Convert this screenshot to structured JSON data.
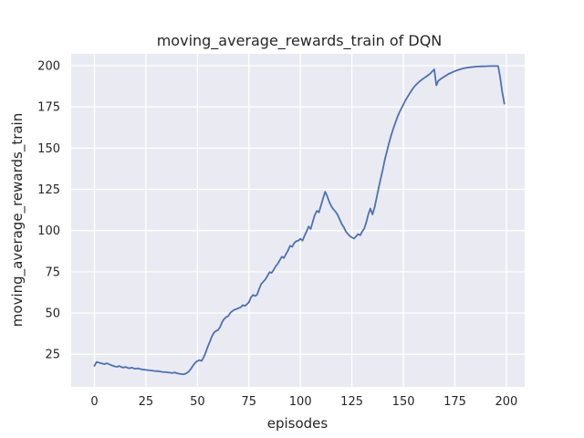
{
  "chart_data": {
    "type": "line",
    "title": "moving_average_rewards_train of DQN",
    "xlabel": "episodes",
    "ylabel": "moving_average_rewards_train",
    "xlim": [
      -11.3,
      208.9
    ],
    "ylim": [
      5.2,
      207.2
    ],
    "xticks": [
      0,
      25,
      50,
      75,
      100,
      125,
      150,
      175,
      200
    ],
    "yticks": [
      25,
      50,
      75,
      100,
      125,
      150,
      175,
      200
    ],
    "grid": true,
    "legend_position": "none",
    "style": {
      "figure_bg": "#FFFFFF",
      "plot_bg": "#EAEAF2",
      "grid_color": "#FFFFFF",
      "line_color": "#4C72B0",
      "text_color": "#262626"
    },
    "series": [
      {
        "name": "moving_average_rewards_train",
        "points": [
          [
            0,
            18.0
          ],
          [
            1,
            20.3
          ],
          [
            2,
            20.0
          ],
          [
            3,
            19.6
          ],
          [
            4,
            19.3
          ],
          [
            5,
            19.0
          ],
          [
            6,
            19.6
          ],
          [
            7,
            19.0
          ],
          [
            8,
            18.4
          ],
          [
            10,
            17.6
          ],
          [
            11,
            17.4
          ],
          [
            12,
            17.9
          ],
          [
            13,
            17.3
          ],
          [
            14,
            16.9
          ],
          [
            15,
            17.3
          ],
          [
            16,
            16.8
          ],
          [
            17,
            16.5
          ],
          [
            18,
            16.9
          ],
          [
            19,
            16.5
          ],
          [
            20,
            16.2
          ],
          [
            21,
            16.5
          ],
          [
            22,
            16.1
          ],
          [
            23,
            15.8
          ],
          [
            25,
            15.5
          ],
          [
            27,
            15.2
          ],
          [
            29,
            14.9
          ],
          [
            31,
            14.7
          ],
          [
            33,
            14.3
          ],
          [
            35,
            14.1
          ],
          [
            37,
            13.8
          ],
          [
            38,
            13.6
          ],
          [
            39,
            14.0
          ],
          [
            40,
            13.5
          ],
          [
            41,
            13.2
          ],
          [
            43,
            12.8
          ],
          [
            44,
            13.1
          ],
          [
            45,
            13.7
          ],
          [
            46,
            14.8
          ],
          [
            47,
            16.5
          ],
          [
            48,
            18.3
          ],
          [
            49,
            20.0
          ],
          [
            50,
            20.9
          ],
          [
            51,
            21.4
          ],
          [
            52,
            21.0
          ],
          [
            53,
            23.0
          ],
          [
            54,
            26.0
          ],
          [
            55,
            29.5
          ],
          [
            56,
            32.5
          ],
          [
            57,
            35.8
          ],
          [
            58,
            38.0
          ],
          [
            59,
            39.2
          ],
          [
            60,
            39.6
          ],
          [
            61,
            41.5
          ],
          [
            62,
            44.5
          ],
          [
            63,
            46.5
          ],
          [
            64,
            47.6
          ],
          [
            65,
            48.2
          ],
          [
            66,
            50.2
          ],
          [
            67,
            51.2
          ],
          [
            68,
            52.0
          ],
          [
            69,
            52.4
          ],
          [
            70,
            53.0
          ],
          [
            71,
            53.5
          ],
          [
            72,
            54.8
          ],
          [
            73,
            54.3
          ],
          [
            74,
            55.3
          ],
          [
            75,
            56.6
          ],
          [
            76,
            59.5
          ],
          [
            77,
            61.0
          ],
          [
            78,
            60.3
          ],
          [
            79,
            61.2
          ],
          [
            80,
            64.8
          ],
          [
            81,
            67.6
          ],
          [
            82,
            69.0
          ],
          [
            83,
            70.4
          ],
          [
            84,
            72.5
          ],
          [
            85,
            74.8
          ],
          [
            86,
            74.3
          ],
          [
            87,
            76.2
          ],
          [
            88,
            78.3
          ],
          [
            89,
            79.9
          ],
          [
            90,
            82.0
          ],
          [
            91,
            84.2
          ],
          [
            92,
            83.4
          ],
          [
            93,
            85.8
          ],
          [
            94,
            88.0
          ],
          [
            95,
            90.8
          ],
          [
            96,
            90.2
          ],
          [
            97,
            92.5
          ],
          [
            98,
            93.6
          ],
          [
            99,
            93.9
          ],
          [
            100,
            95.0
          ],
          [
            101,
            93.9
          ],
          [
            102,
            96.8
          ],
          [
            103,
            99.5
          ],
          [
            104,
            102.5
          ],
          [
            105,
            101.0
          ],
          [
            106,
            105.5
          ],
          [
            107,
            109.5
          ],
          [
            108,
            112.0
          ],
          [
            109,
            111.0
          ],
          [
            110,
            115.3
          ],
          [
            111,
            119.5
          ],
          [
            112,
            123.5
          ],
          [
            113,
            121.0
          ],
          [
            114,
            117.5
          ],
          [
            115,
            114.8
          ],
          [
            116,
            113.0
          ],
          [
            117,
            111.5
          ],
          [
            118,
            109.8
          ],
          [
            119,
            107.0
          ],
          [
            120,
            104.2
          ],
          [
            121,
            102.2
          ],
          [
            122,
            99.6
          ],
          [
            123,
            98.0
          ],
          [
            124,
            96.7
          ],
          [
            125,
            95.9
          ],
          [
            126,
            95.2
          ],
          [
            127,
            96.4
          ],
          [
            128,
            97.9
          ],
          [
            129,
            97.1
          ],
          [
            130,
            99.4
          ],
          [
            131,
            101.3
          ],
          [
            132,
            105.0
          ],
          [
            133,
            110.0
          ],
          [
            134,
            113.4
          ],
          [
            135,
            109.8
          ],
          [
            136,
            114.0
          ],
          [
            137,
            119.8
          ],
          [
            138,
            126.0
          ],
          [
            139,
            131.5
          ],
          [
            140,
            137.0
          ],
          [
            141,
            143.0
          ],
          [
            142,
            148.0
          ],
          [
            143,
            153.0
          ],
          [
            144,
            157.5
          ],
          [
            145,
            161.5
          ],
          [
            146,
            165.0
          ],
          [
            147,
            168.5
          ],
          [
            148,
            171.5
          ],
          [
            149,
            174.0
          ],
          [
            150,
            176.5
          ],
          [
            151,
            179.0
          ],
          [
            152,
            181.0
          ],
          [
            153,
            183.0
          ],
          [
            154,
            185.0
          ],
          [
            155,
            186.8
          ],
          [
            156,
            188.3
          ],
          [
            157,
            189.5
          ],
          [
            158,
            190.6
          ],
          [
            159,
            191.6
          ],
          [
            160,
            192.5
          ],
          [
            161,
            193.3
          ],
          [
            162,
            194.2
          ],
          [
            163,
            195.2
          ],
          [
            164,
            196.5
          ],
          [
            165,
            197.8
          ],
          [
            166,
            188.1
          ],
          [
            167,
            190.9
          ],
          [
            168,
            191.8
          ],
          [
            170,
            193.5
          ],
          [
            172,
            195.0
          ],
          [
            174,
            196.2
          ],
          [
            176,
            197.2
          ],
          [
            178,
            198.0
          ],
          [
            180,
            198.6
          ],
          [
            182,
            199.0
          ],
          [
            184,
            199.3
          ],
          [
            186,
            199.5
          ],
          [
            188,
            199.6
          ],
          [
            190,
            199.7
          ],
          [
            192,
            199.8
          ],
          [
            194,
            199.8
          ],
          [
            196,
            199.8
          ],
          [
            197,
            193.0
          ],
          [
            198,
            184.0
          ],
          [
            199,
            177.0
          ]
        ]
      }
    ]
  }
}
